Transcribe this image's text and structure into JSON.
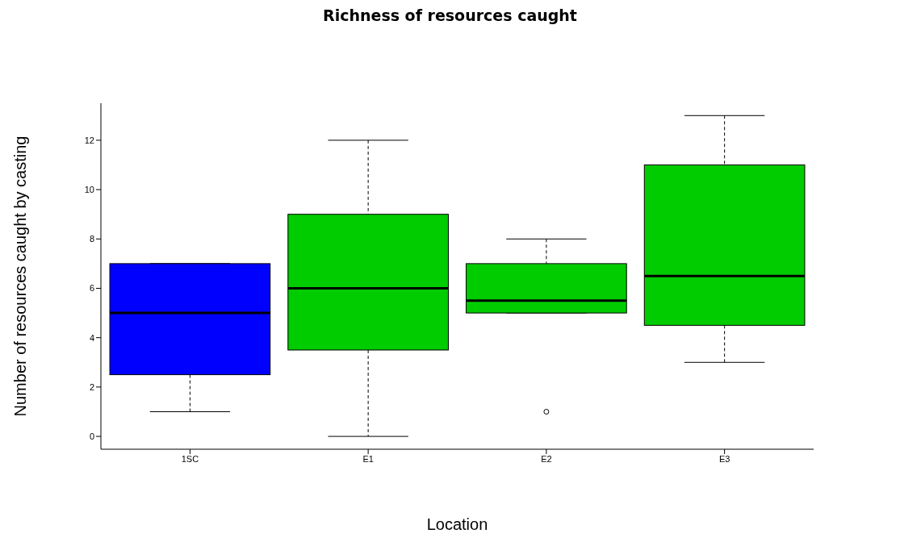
{
  "chart_data": {
    "type": "box",
    "title": "Richness of resources caught",
    "xlabel": "Location",
    "ylabel": "Number of resources caught by casting",
    "categories": [
      "1SC",
      "E1",
      "E2",
      "E3"
    ],
    "boxes": [
      {
        "low": 1,
        "q1": 2.5,
        "median": 5,
        "q3": 7,
        "high": 7
      },
      {
        "low": 0,
        "q1": 3.5,
        "median": 6,
        "q3": 9,
        "high": 12
      },
      {
        "low": 5,
        "q1": 5,
        "median": 5.5,
        "q3": 7,
        "high": 8,
        "outliers": [
          1
        ]
      },
      {
        "low": 3,
        "q1": 4.5,
        "median": 6.5,
        "q3": 11,
        "high": 13
      }
    ],
    "colors": [
      "#0000ff",
      "#00cc00",
      "#00cc00",
      "#00cc00"
    ],
    "ylim": [
      -0.52,
      13.5
    ],
    "yticks": [
      0,
      2,
      4,
      6,
      8,
      10,
      12
    ]
  }
}
